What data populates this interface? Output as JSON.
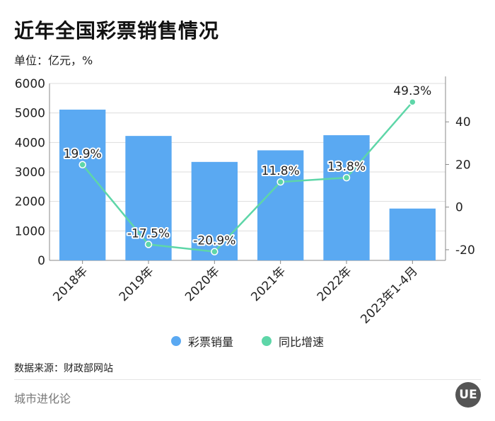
{
  "header": {
    "title": "近年全国彩票销售情况",
    "unit": "单位：亿元，%"
  },
  "legend": {
    "bar_label": "彩票销量",
    "line_label": "同比增速"
  },
  "footer": {
    "source": "数据来源：财政部网站",
    "brand": "城市进化论",
    "logo_text": "UE"
  },
  "colors": {
    "bar": "#5aa9f2",
    "line": "#5ed6a8",
    "grid": "#dddddd",
    "axis": "#888888"
  },
  "chart_data": {
    "type": "bar",
    "categories": [
      "2018年",
      "2019年",
      "2020年",
      "2021年",
      "2022年",
      "2023年1-4月"
    ],
    "series": [
      {
        "name": "彩票销量",
        "type": "bar",
        "axis": "left",
        "values": [
          5114,
          4221,
          3340,
          3733,
          4246,
          1758
        ]
      },
      {
        "name": "同比增速",
        "type": "line",
        "axis": "right",
        "values": [
          19.9,
          -17.5,
          -20.9,
          11.8,
          13.8,
          49.3
        ],
        "labels": [
          "19.9%",
          "-17.5%",
          "-20.9%",
          "11.8%",
          "13.8%",
          "49.3%"
        ]
      }
    ],
    "y_left": {
      "min": 0,
      "max": 6000,
      "ticks": [
        0,
        1000,
        2000,
        3000,
        4000,
        5000,
        6000
      ]
    },
    "y_right": {
      "min": -25,
      "max": 58,
      "ticks": [
        -20,
        0,
        20,
        40
      ]
    },
    "grid": true,
    "legend_position": "bottom"
  }
}
